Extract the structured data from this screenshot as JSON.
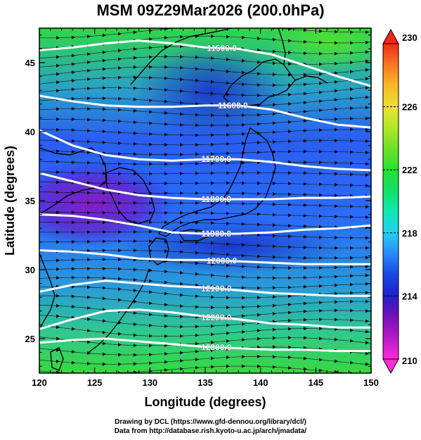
{
  "title": "MSM 09Z29Mar2026 (200.0hPa)",
  "x_axis": {
    "label": "Longitude (degrees)",
    "range": [
      120,
      150
    ],
    "ticks": [
      120,
      125,
      130,
      135,
      140,
      145,
      150
    ],
    "tick_labels": [
      "120",
      "125",
      "130",
      "135",
      "140",
      "145",
      "150"
    ]
  },
  "y_axis": {
    "label": "Latitude  (degrees)",
    "range": [
      22.5,
      47.5
    ],
    "ticks": [
      25,
      30,
      35,
      40,
      45
    ],
    "tick_labels": [
      "25",
      "30",
      "35",
      "40",
      "45"
    ]
  },
  "colorbar": {
    "min": 210,
    "max": 230,
    "tick_labels": [
      "230",
      "226",
      "222",
      "218",
      "214",
      "210"
    ],
    "colors": [
      "#ff2ad8",
      "#b418c8",
      "#7010b8",
      "#2020c8",
      "#1848e8",
      "#2a90ff",
      "#22d0f0",
      "#10e8b0",
      "#10e060",
      "#28e030",
      "#70e028",
      "#b8e828",
      "#ece030",
      "#f8b828",
      "#f87020",
      "#f02818"
    ]
  },
  "contours": [
    {
      "label": "11500.0",
      "points": [
        [
          120,
          45.9
        ],
        [
          123,
          46.1
        ],
        [
          126,
          46.4
        ],
        [
          129,
          46.6
        ],
        [
          132,
          46.4
        ],
        [
          135,
          46.1
        ],
        [
          138,
          46.0
        ],
        [
          141,
          45.6
        ],
        [
          144,
          44.8
        ],
        [
          147,
          44.0
        ],
        [
          150,
          43.3
        ]
      ]
    },
    {
      "label": "11600.0",
      "points": [
        [
          120,
          42.6
        ],
        [
          123,
          42.2
        ],
        [
          126,
          41.9
        ],
        [
          129,
          41.8
        ],
        [
          132,
          41.8
        ],
        [
          135,
          41.9
        ],
        [
          138,
          41.9
        ],
        [
          141,
          41.6
        ],
        [
          144,
          41.0
        ],
        [
          147,
          40.5
        ],
        [
          150,
          40.3
        ]
      ]
    },
    {
      "label": "11700.0",
      "points": [
        [
          120,
          40.1
        ],
        [
          123,
          39.0
        ],
        [
          126,
          38.3
        ],
        [
          129,
          38.0
        ],
        [
          132,
          37.9
        ],
        [
          135,
          38.0
        ],
        [
          138,
          38.0
        ],
        [
          141,
          37.8
        ],
        [
          144,
          37.5
        ],
        [
          147,
          37.3
        ],
        [
          150,
          37.2
        ]
      ]
    },
    {
      "label": "11800.0",
      "points": [
        [
          120,
          37.0
        ],
        [
          123,
          36.4
        ],
        [
          126,
          35.8
        ],
        [
          129,
          35.4
        ],
        [
          132,
          35.2
        ],
        [
          135,
          35.1
        ],
        [
          138,
          35.1
        ],
        [
          141,
          35.1
        ],
        [
          144,
          35.2
        ],
        [
          147,
          35.2
        ],
        [
          150,
          35.3
        ]
      ]
    },
    {
      "label": "11900.0",
      "points": [
        [
          120,
          34.0
        ],
        [
          123,
          33.9
        ],
        [
          126,
          33.6
        ],
        [
          129,
          33.2
        ],
        [
          132,
          32.7
        ],
        [
          135,
          32.6
        ],
        [
          138,
          32.6
        ],
        [
          141,
          32.7
        ],
        [
          144,
          32.9
        ],
        [
          147,
          33.0
        ],
        [
          150,
          33.2
        ]
      ]
    },
    {
      "label": "12000.0",
      "points": [
        [
          120,
          31.4
        ],
        [
          123,
          31.3
        ],
        [
          126,
          31.1
        ],
        [
          129,
          30.8
        ],
        [
          132,
          30.7
        ],
        [
          135,
          30.7
        ],
        [
          138,
          30.6
        ],
        [
          141,
          30.5
        ],
        [
          144,
          30.4
        ],
        [
          147,
          30.4
        ],
        [
          150,
          30.4
        ]
      ]
    },
    {
      "label": "12100.0",
      "points": [
        [
          120,
          28.4
        ],
        [
          123,
          28.9
        ],
        [
          126,
          29.2
        ],
        [
          129,
          29.0
        ],
        [
          132,
          28.8
        ],
        [
          135,
          28.7
        ],
        [
          138,
          28.5
        ],
        [
          141,
          28.3
        ],
        [
          144,
          28.2
        ],
        [
          147,
          28.1
        ],
        [
          150,
          28.1
        ]
      ]
    },
    {
      "label": "12200.0",
      "points": [
        [
          120,
          25.7
        ],
        [
          123,
          26.4
        ],
        [
          126,
          27.0
        ],
        [
          129,
          27.1
        ],
        [
          132,
          26.9
        ],
        [
          135,
          26.6
        ],
        [
          138,
          26.4
        ],
        [
          141,
          26.1
        ],
        [
          144,
          26.0
        ],
        [
          147,
          25.8
        ],
        [
          150,
          25.8
        ]
      ]
    },
    {
      "label": "12300.0",
      "points": [
        [
          120,
          24.7
        ],
        [
          123,
          24.9
        ],
        [
          126,
          25.0
        ],
        [
          129,
          24.8
        ],
        [
          132,
          24.6
        ],
        [
          135,
          24.4
        ],
        [
          138,
          24.3
        ],
        [
          141,
          24.2
        ],
        [
          144,
          24.2
        ],
        [
          147,
          24.1
        ],
        [
          150,
          24.1
        ]
      ]
    }
  ],
  "contour_label_lon": [
    136.5,
    137.5,
    136.0,
    136.0,
    136.0,
    136.5,
    136.0,
    136.0,
    136.0
  ],
  "credits": [
    "Drawing by DCL (https://www.gfd-dennou.org/library/dcl/)",
    "Data from http://database.rish.kyoto-u.ac.jp/arch/jmadata/"
  ]
}
